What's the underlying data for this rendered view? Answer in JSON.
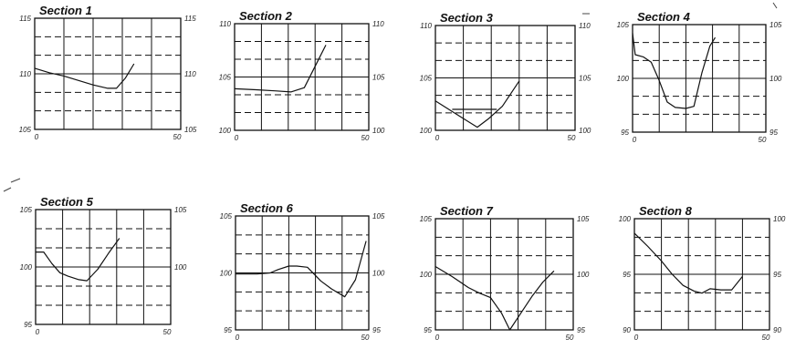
{
  "chart_data": [
    {
      "type": "line",
      "title": "Section 1",
      "xlim": [
        0,
        50
      ],
      "ylim": [
        105,
        115
      ],
      "xticks": [
        "0",
        "50"
      ],
      "yticks_left": [
        "115",
        "110",
        "105"
      ],
      "yticks_right": [
        "115",
        "110",
        "105"
      ],
      "series": [
        {
          "x": [
            0,
            5,
            10,
            15,
            20,
            25,
            28,
            31,
            34
          ],
          "y": [
            110.5,
            110.1,
            109.8,
            109.4,
            109,
            108.7,
            108.7,
            109.6,
            110.9
          ]
        }
      ]
    },
    {
      "type": "line",
      "title": "Section 2",
      "xlim": [
        0,
        50
      ],
      "ylim": [
        100,
        110
      ],
      "xticks": [
        "0",
        "50"
      ],
      "yticks_left": [
        "110",
        "105",
        "100"
      ],
      "yticks_right": [
        "110",
        "105",
        "100"
      ],
      "series": [
        {
          "x": [
            0,
            8,
            15,
            21,
            26,
            30,
            34
          ],
          "y": [
            103.9,
            103.8,
            103.7,
            103.6,
            104,
            106,
            108
          ]
        }
      ]
    },
    {
      "type": "line",
      "title": "Section 3",
      "xlim": [
        0,
        50
      ],
      "ylim": [
        100,
        110
      ],
      "xticks": [
        "0",
        "50"
      ],
      "yticks_left": [
        "110",
        "105",
        "100"
      ],
      "yticks_right": [
        "110",
        "105",
        "100"
      ],
      "series": [
        {
          "x": [
            0,
            9,
            15,
            19,
            24,
            30
          ],
          "y": [
            102.8,
            101.3,
            100.3,
            101.1,
            102.3,
            104.7
          ]
        },
        {
          "x": [
            6,
            22
          ],
          "y": [
            102,
            102
          ]
        }
      ]
    },
    {
      "type": "line",
      "title": "Section 4",
      "xlim": [
        0,
        50
      ],
      "ylim": [
        95,
        105
      ],
      "xticks": [
        "0",
        "50"
      ],
      "yticks_left": [
        "105",
        "100",
        "95"
      ],
      "yticks_right": [
        "105",
        "100",
        "95"
      ],
      "series": [
        {
          "x": [
            0,
            1,
            4,
            7,
            10,
            13,
            16,
            20,
            23,
            26,
            29,
            31
          ],
          "y": [
            104.2,
            102.2,
            102,
            101.5,
            99.8,
            97.8,
            97.3,
            97.2,
            97.4,
            100.5,
            103,
            103.8
          ]
        }
      ]
    },
    {
      "type": "line",
      "title": "Section 5",
      "xlim": [
        0,
        50
      ],
      "ylim": [
        95,
        105
      ],
      "xticks": [
        "0",
        "50"
      ],
      "yticks_left": [
        "105",
        "100",
        "95"
      ],
      "yticks_right": [
        "105",
        "100"
      ],
      "series": [
        {
          "x": [
            0,
            3,
            6,
            9,
            12,
            16,
            19,
            23,
            27,
            31
          ],
          "y": [
            101.3,
            101.3,
            100.3,
            99.5,
            99.2,
            98.9,
            98.8,
            99.8,
            101.2,
            102.5
          ]
        }
      ]
    },
    {
      "type": "line",
      "title": "Section 6",
      "xlim": [
        0,
        50
      ],
      "ylim": [
        95,
        105
      ],
      "xticks": [
        "0",
        "50"
      ],
      "yticks_left": [
        "105",
        "100",
        "95"
      ],
      "yticks_right": [
        "105",
        "100",
        "95"
      ],
      "series": [
        {
          "x": [
            0,
            8,
            13,
            16,
            20,
            23,
            27,
            32,
            36,
            41,
            45,
            49
          ],
          "y": [
            99.9,
            99.9,
            100,
            100.3,
            100.6,
            100.6,
            100.5,
            99.3,
            98.6,
            97.9,
            99.4,
            102.8
          ]
        }
      ]
    },
    {
      "type": "line",
      "title": "Section 7",
      "xlim": [
        0,
        50
      ],
      "ylim": [
        95,
        105
      ],
      "xticks": [
        "0",
        "50"
      ],
      "yticks_left": [
        "105",
        "100",
        "95"
      ],
      "yticks_right": [
        "105",
        "100",
        "95"
      ],
      "series": [
        {
          "x": [
            0,
            6,
            12,
            16,
            20,
            24,
            27,
            31,
            35,
            39,
            43
          ],
          "y": [
            100.7,
            99.8,
            98.8,
            98.3,
            97.9,
            96.5,
            95,
            96.5,
            98,
            99.3,
            100.3
          ]
        }
      ]
    },
    {
      "type": "line",
      "title": "Section 8",
      "xlim": [
        0,
        50
      ],
      "ylim": [
        90,
        100
      ],
      "xticks": [
        "0",
        "50"
      ],
      "yticks_left": [
        "100",
        "95",
        "90"
      ],
      "yticks_right": [
        "100",
        "95",
        "90"
      ],
      "series": [
        {
          "x": [
            0,
            5,
            10,
            14,
            18,
            22,
            25,
            28,
            32,
            36,
            40
          ],
          "y": [
            98.7,
            97.5,
            96.2,
            95,
            94,
            93.5,
            93.3,
            93.7,
            93.6,
            93.6,
            94.8
          ]
        }
      ]
    }
  ]
}
